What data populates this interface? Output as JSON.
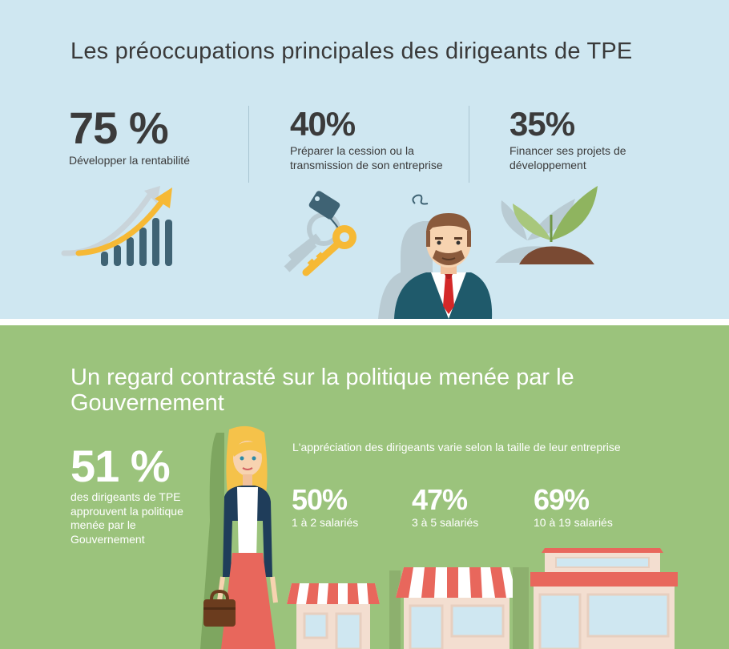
{
  "section1": {
    "title": "Les préoccupations principales des dirigeants de TPE",
    "stats": [
      {
        "value": "75 %",
        "label": "Développer la rentabilité",
        "icon": "growth-chart-icon"
      },
      {
        "value": "40%",
        "label": "Préparer la cession ou la transmission de son entreprise",
        "icon": "keys-icon"
      },
      {
        "value": "35%",
        "label": "Financer ses projets de développement",
        "icon": "sprout-icon"
      }
    ]
  },
  "section2": {
    "title": "Un regard contrasté sur la politique menée par le Gouvernement",
    "main_stat": {
      "value": "51 %",
      "label": "des dirigeants de TPE approuvent la politique menée par le Gouvernement"
    },
    "subtitle": "L'appréciation des dirigeants varie selon la taille de leur entreprise",
    "by_size": [
      {
        "value": "50%",
        "label": "1 à 2 salariés",
        "icon": "small-shop-icon"
      },
      {
        "value": "47%",
        "label": "3 à 5 salariés",
        "icon": "medium-shop-icon"
      },
      {
        "value": "69%",
        "label": "10 à 19 salariés",
        "icon": "large-shop-icon"
      }
    ]
  },
  "colors": {
    "top_background": "#cfe7f1",
    "bottom_background": "#9bc37c",
    "accent_yellow": "#f6b935",
    "chart_bars": "#3f6374",
    "awning_red": "#e8675c"
  }
}
